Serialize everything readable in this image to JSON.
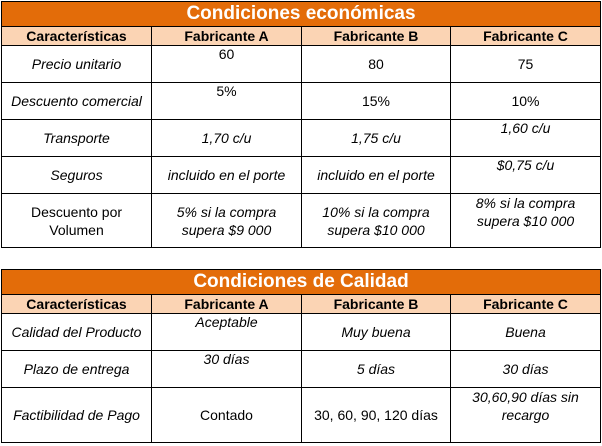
{
  "economic": {
    "title": "Condiciones económicas",
    "headers": [
      "Características",
      "Fabricante A",
      "Fabricante B",
      "Fabricante C"
    ],
    "rows": [
      {
        "label": "Precio unitario",
        "a": "60",
        "b": "80",
        "c": "75"
      },
      {
        "label": "Descuento comercial",
        "a": "5%",
        "b": "15%",
        "c": "10%"
      },
      {
        "label": "Transporte",
        "a": "1,70 c/u",
        "b": "1,75 c/u",
        "c": "1,60 c/u"
      },
      {
        "label": "Seguros",
        "a": "incluido en el porte",
        "b": "incluido en el porte",
        "c": "$0,75 c/u"
      },
      {
        "label_l1": "Descuento por",
        "label_l2": "Volumen",
        "a_l1": "5% si la compra",
        "a_l2": "supera $9 000",
        "b_l1": "10% si la compra",
        "b_l2": "supera $10 000",
        "c_l1": "8% si la compra",
        "c_l2": "supera $10 000"
      }
    ]
  },
  "quality": {
    "title": "Condiciones de Calidad",
    "headers": [
      "Características",
      "Fabricante A",
      "Fabricante B",
      "Fabricante C"
    ],
    "rows": [
      {
        "label": "Calidad del Producto",
        "a": "Aceptable",
        "b": "Muy buena",
        "c": "Buena"
      },
      {
        "label": "Plazo de entrega",
        "a": "30 días",
        "b": "5 días",
        "c": "30 días"
      },
      {
        "label": "Factibilidad de Pago",
        "a": "Contado",
        "b": "30, 60, 90, 120 días",
        "c_l1": "30,60,90 días sin",
        "c_l2": "recargo"
      }
    ]
  },
  "colors": {
    "title_bg": "#e36c09",
    "header_bg": "#fbd4b4"
  }
}
